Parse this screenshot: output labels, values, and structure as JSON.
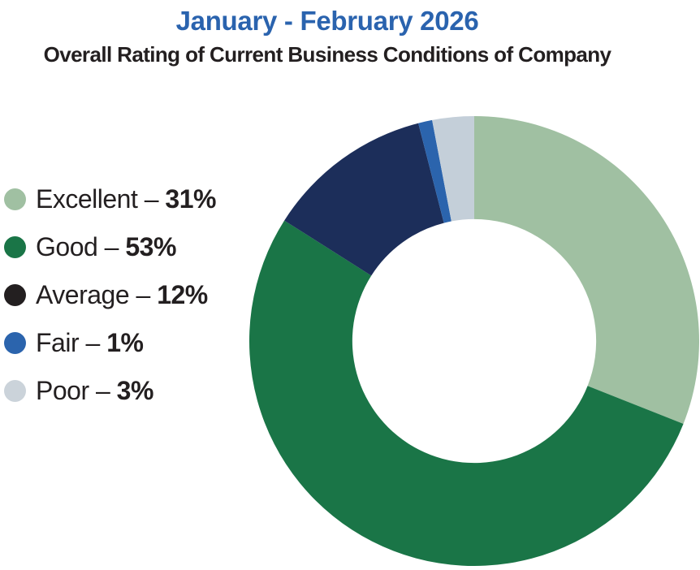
{
  "colors": {
    "title": "#2a63ae",
    "text": "#231f20",
    "background": "#ffffff"
  },
  "chart_data": {
    "type": "pie",
    "variant": "donut",
    "title": "January - February 2026",
    "subtitle": "Overall Rating of Current Business Conditions of Company",
    "units": "%",
    "start_angle_deg": 0,
    "direction": "clockwise",
    "inner_radius_ratio": 0.542,
    "legend_position": "left",
    "separator": "–",
    "segments": [
      {
        "label": "Excellent",
        "value": 31,
        "value_text": "31%",
        "color": "#a0c0a2",
        "legend_dot_color": "#a0c0a2"
      },
      {
        "label": "Good",
        "value": 53,
        "value_text": "53%",
        "color": "#1a7547",
        "legend_dot_color": "#1a7547"
      },
      {
        "label": "Average",
        "value": 12,
        "value_text": "12%",
        "color": "#1c2e5a",
        "legend_dot_color": "#231f20"
      },
      {
        "label": "Fair",
        "value": 1,
        "value_text": "1%",
        "color": "#2b64ad",
        "legend_dot_color": "#2b64ad"
      },
      {
        "label": "Poor",
        "value": 3,
        "value_text": "3%",
        "color": "#c4cfd9",
        "legend_dot_color": "#cbd3da"
      }
    ]
  }
}
